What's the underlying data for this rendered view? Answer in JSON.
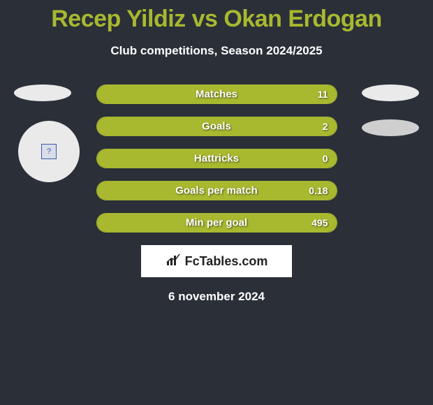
{
  "title": "Recep Yildiz vs Okan Erdogan",
  "subtitle": "Club competitions, Season 2024/2025",
  "colors": {
    "background": "#2a2f38",
    "accent": "#a8b82f",
    "text_light": "#ffffff",
    "ellipse": "#eaeaea",
    "ellipse_dark": "#cfcfcf"
  },
  "stats": [
    {
      "label": "Matches",
      "value": "11",
      "fill_pct": 100
    },
    {
      "label": "Goals",
      "value": "2",
      "fill_pct": 100
    },
    {
      "label": "Hattricks",
      "value": "0",
      "fill_pct": 100
    },
    {
      "label": "Goals per match",
      "value": "0.18",
      "fill_pct": 100
    },
    {
      "label": "Min per goal",
      "value": "495",
      "fill_pct": 100
    }
  ],
  "logo": {
    "text": "FcTables.com"
  },
  "date": "6 november 2024",
  "placeholder_icon": "?"
}
